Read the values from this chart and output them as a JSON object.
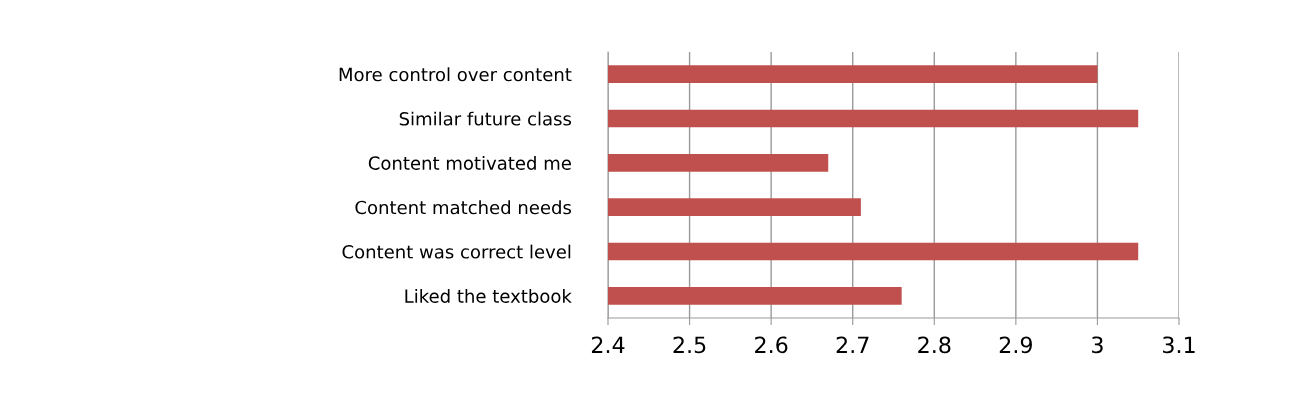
{
  "chart_data": {
    "type": "bar",
    "orientation": "horizontal",
    "categories": [
      "More control over content",
      "Similar future class",
      "Content motivated me",
      "Content matched needs",
      "Content was correct level",
      "Liked the textbook"
    ],
    "values": [
      3.0,
      3.05,
      2.67,
      2.71,
      3.05,
      2.76
    ],
    "color": "#c0504d",
    "xlim": [
      2.4,
      3.1
    ],
    "xticks": [
      2.4,
      2.5,
      2.6,
      2.7,
      2.8,
      2.9,
      3,
      3.1
    ],
    "grid": "x",
    "legend": false
  }
}
